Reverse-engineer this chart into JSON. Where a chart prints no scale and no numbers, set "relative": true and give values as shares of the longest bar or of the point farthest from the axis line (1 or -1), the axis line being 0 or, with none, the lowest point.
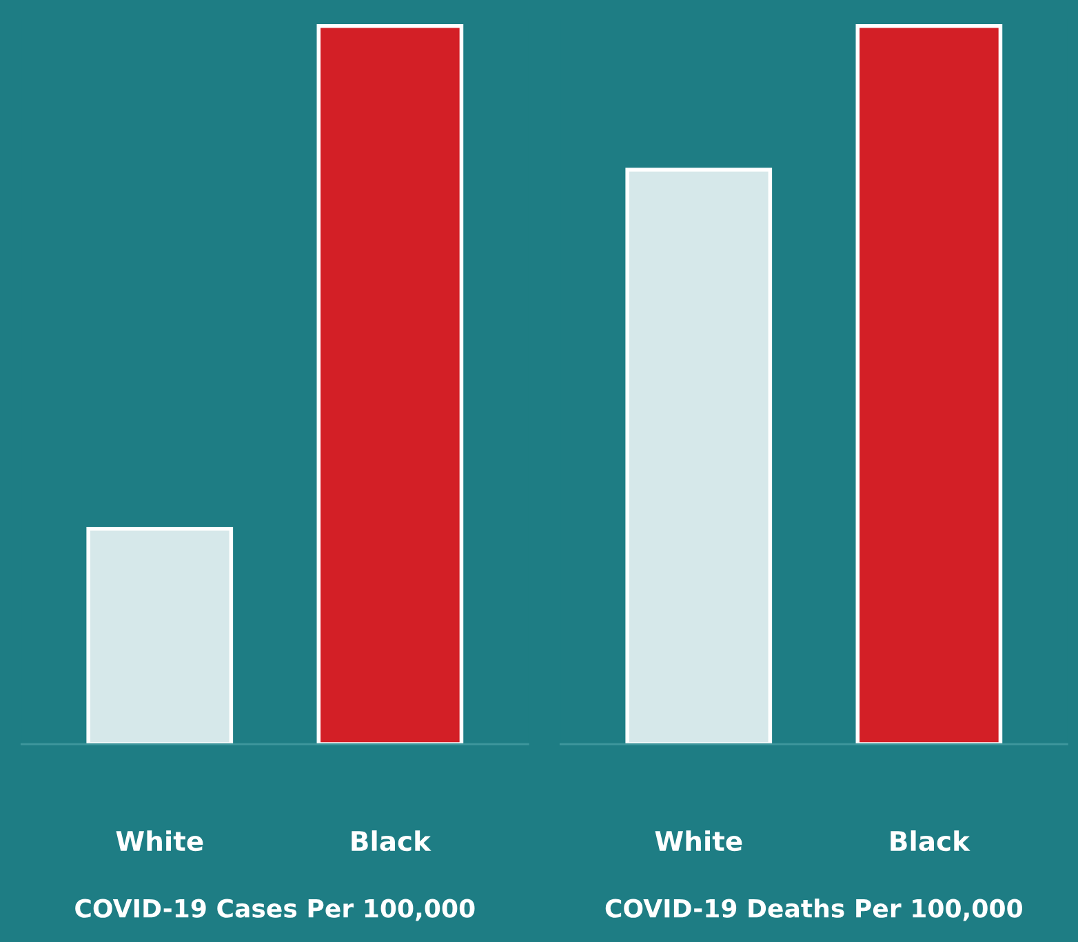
{
  "chart_data": [
    {
      "type": "bar",
      "relative": true,
      "xlabel": "COVID-19 Cases Per 100,000",
      "categories": [
        "White",
        "Black"
      ],
      "values": [
        0.3,
        1
      ],
      "colors": [
        "#d6e8ea",
        "#d31f26"
      ],
      "grid": false,
      "legend": false
    },
    {
      "type": "bar",
      "relative": true,
      "xlabel": "COVID-19 Deaths Per 100,000",
      "categories": [
        "White",
        "Black"
      ],
      "values": [
        0.8,
        1
      ],
      "colors": [
        "#d6e8ea",
        "#d31f26"
      ],
      "grid": false,
      "legend": false
    }
  ]
}
